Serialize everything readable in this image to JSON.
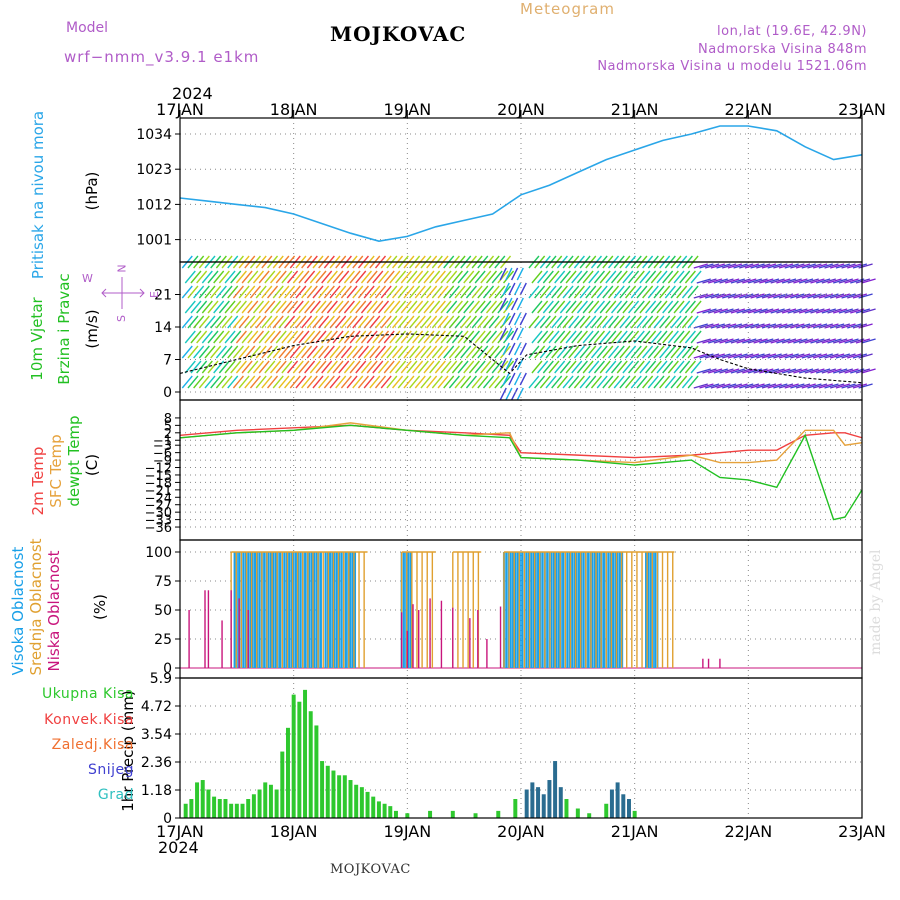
{
  "header": {
    "model_label": "Model",
    "model_name": "wrf−nmm_v3.9.1 e1km",
    "station": "MOJKOVAC",
    "meteogram": "Meteogram",
    "lonlat": "lon,lat (19.6E, 42.9N)",
    "elevation": "Nadmorska Visina 848m",
    "model_elevation": "Nadmorska Visina u modelu 1521.06m",
    "year": "2024",
    "footer": "MOJKOVAC",
    "madeby": "made by Angel"
  },
  "colors": {
    "pressure": "#2aa6e8",
    "temp2m": "#f04040",
    "sfc_temp": "#e6a23c",
    "dewpt": "#22c022",
    "high_cloud": "#1aa0e8",
    "mid_cloud": "#e0a030",
    "low_cloud": "#c8157c",
    "precip_total": "#2ec82e",
    "snow_bar": "#2a6c90",
    "label_purple": "#b05cc8"
  },
  "labels": {
    "pressure_side": "Pritisak na nivou mora",
    "pressure_unit": "(hPa)",
    "wind_side1": "10m Vjetar",
    "wind_side2": "Brzina i Pravac",
    "wind_unit": "(m/s)",
    "wind_rose_n": "N",
    "wind_rose_w": "W",
    "wind_rose_e": "E",
    "wind_rose_s": "S",
    "temp_side1": "2m Temp",
    "temp_side2": "SFC Temp",
    "temp_side3": "dewpt Temp",
    "temp_unit": "(C)",
    "cloud_side1": "Visoka Oblacnost",
    "cloud_side2": "Srednja Oblacnost",
    "cloud_side3": "Niska Oblacnost",
    "cloud_unit": "(%)",
    "precip_unit": "1hr Precip (mm)",
    "legend_total": "Ukupna Kisa",
    "legend_convective": "Konvek.Kisa",
    "legend_freezing": "Zaledj.Kisa",
    "legend_snow": "Snijeg",
    "legend_hail": "Grad"
  },
  "chart_data": [
    {
      "type": "line",
      "title": "Pritisak na nivou mora",
      "ylabel": "(hPa)",
      "ylim": [
        994,
        1039
      ],
      "yticks": [
        1001,
        1012,
        1023,
        1034
      ],
      "x_days": [
        "17JAN",
        "18JAN",
        "19JAN",
        "20JAN",
        "21JAN",
        "22JAN",
        "23JAN"
      ],
      "x": [
        0,
        0.25,
        0.5,
        0.75,
        1.0,
        1.25,
        1.5,
        1.75,
        2.0,
        2.25,
        2.5,
        2.75,
        3.0,
        3.25,
        3.5,
        3.75,
        4.0,
        4.25,
        4.5,
        4.75,
        5.0,
        5.25,
        5.5,
        5.75,
        6.0
      ],
      "values": [
        1014,
        1013,
        1012,
        1011,
        1009,
        1006,
        1003,
        1000.5,
        1002,
        1005,
        1007,
        1009,
        1015,
        1018,
        1022,
        1026,
        1029,
        1032,
        1034,
        1036.5,
        1036.5,
        1035,
        1030,
        1026,
        1027.5
      ],
      "grid": true
    },
    {
      "type": "line",
      "title": "10m Vjetar Brzina i Pravac",
      "ylabel": "(m/s)",
      "ylim": [
        0,
        28
      ],
      "yticks": [
        0,
        7,
        14,
        21
      ],
      "x": [
        0,
        0.5,
        1.0,
        1.5,
        2.0,
        2.5,
        2.9,
        3.05,
        3.5,
        4.0,
        4.5,
        4.75,
        5.0,
        5.5,
        6.0
      ],
      "values": [
        4,
        7,
        10,
        12,
        12.5,
        12,
        4,
        8,
        10,
        11,
        9.5,
        7,
        5,
        3,
        2
      ],
      "grid": true
    },
    {
      "type": "line",
      "title": "Temperature",
      "ylabel": "(C)",
      "ylim": [
        -38,
        12
      ],
      "yticks": [
        8,
        5,
        2,
        -1,
        -3,
        -6,
        -9,
        -12,
        -15,
        -18,
        -21,
        -24,
        -27,
        -30,
        -33,
        -36
      ],
      "x": [
        0,
        0.5,
        1.0,
        1.5,
        2.0,
        2.5,
        2.9,
        3.0,
        3.5,
        4.0,
        4.5,
        4.75,
        5.0,
        5.25,
        5.5,
        5.75,
        5.85,
        6.0
      ],
      "series": [
        {
          "name": "2m Temp",
          "values": [
            1,
            3,
            4,
            5,
            3,
            2,
            1,
            -6,
            -7,
            -8,
            -7,
            -6,
            -5,
            -5,
            1,
            2,
            2,
            0
          ]
        },
        {
          "name": "SFC Temp",
          "values": [
            0,
            2,
            3,
            6,
            3,
            1,
            2,
            -8,
            -9,
            -10,
            -7,
            -10,
            -10,
            -9,
            3,
            3,
            -3,
            -2
          ]
        },
        {
          "name": "dewpt Temp",
          "values": [
            0,
            2,
            3,
            5,
            3,
            1,
            0,
            -8,
            -9,
            -11,
            -9,
            -16,
            -17,
            -20,
            1,
            -33,
            -32,
            -21
          ]
        }
      ],
      "grid": true
    },
    {
      "type": "bar",
      "title": "Oblacnost",
      "ylabel": "(%)",
      "ylim": [
        0,
        100
      ],
      "yticks": [
        0,
        25,
        50,
        75,
        100
      ],
      "series": [
        {
          "name": "Visoka Oblacnost",
          "x_ranges": [
            [
              0.48,
              1.25
            ],
            [
              1.28,
              1.55
            ],
            [
              1.95,
              2.03
            ],
            [
              2.85,
              3.9
            ],
            [
              4.1,
              4.2
            ]
          ],
          "value": 100
        },
        {
          "name": "Srednja Oblacnost",
          "x_ranges": [
            [
              0.45,
              1.65
            ],
            [
              1.95,
              2.25
            ],
            [
              2.4,
              2.65
            ],
            [
              2.85,
              4.35
            ]
          ],
          "value": 100
        },
        {
          "name": "Niska Oblacnost",
          "x": [
            0.08,
            0.22,
            0.25,
            0.37,
            0.45,
            0.52,
            0.6,
            1.95,
            2.0,
            2.05,
            2.1,
            2.2,
            2.3,
            2.4,
            2.55,
            2.62,
            2.7,
            2.82,
            4.6,
            4.65,
            4.75
          ],
          "values": [
            50,
            67,
            67,
            41,
            67,
            60,
            50,
            48,
            32,
            55,
            50,
            60,
            58,
            52,
            43,
            50,
            25,
            53,
            8,
            8,
            8
          ]
        }
      ],
      "grid": true
    },
    {
      "type": "bar",
      "title": "1hr Precip",
      "ylabel": "1hr Precip (mm)",
      "ylim": [
        0,
        5.9
      ],
      "yticks": [
        0,
        1.18,
        2.36,
        3.54,
        4.72,
        5.9
      ],
      "x": [
        0.05,
        0.1,
        0.15,
        0.2,
        0.25,
        0.3,
        0.35,
        0.4,
        0.45,
        0.5,
        0.55,
        0.6,
        0.65,
        0.7,
        0.75,
        0.8,
        0.85,
        0.9,
        0.95,
        1.0,
        1.05,
        1.1,
        1.15,
        1.2,
        1.25,
        1.3,
        1.35,
        1.4,
        1.45,
        1.5,
        1.55,
        1.6,
        1.65,
        1.7,
        1.75,
        1.8,
        1.85,
        1.9,
        2.0,
        2.2,
        2.4,
        2.6,
        2.8,
        2.95,
        3.05,
        3.1,
        3.15,
        3.2,
        3.25,
        3.3,
        3.35,
        3.4,
        3.5,
        3.6,
        3.75,
        3.8,
        3.85,
        3.9,
        3.95,
        4.0
      ],
      "values": [
        0.6,
        0.8,
        1.5,
        1.6,
        1.2,
        0.9,
        0.8,
        0.8,
        0.6,
        0.6,
        0.6,
        0.8,
        1.0,
        1.2,
        1.5,
        1.4,
        1.2,
        2.8,
        3.8,
        5.2,
        4.9,
        5.4,
        4.5,
        3.9,
        2.4,
        2.2,
        2.0,
        1.8,
        1.8,
        1.6,
        1.4,
        1.3,
        1.1,
        0.9,
        0.7,
        0.6,
        0.5,
        0.3,
        0.2,
        0.3,
        0.3,
        0.2,
        0.3,
        0.8,
        1.2,
        1.5,
        1.3,
        1.0,
        1.6,
        2.4,
        1.3,
        0.8,
        0.4,
        0.2,
        0.6,
        1.2,
        1.5,
        1.0,
        0.8,
        0.3
      ],
      "grid": true
    }
  ]
}
